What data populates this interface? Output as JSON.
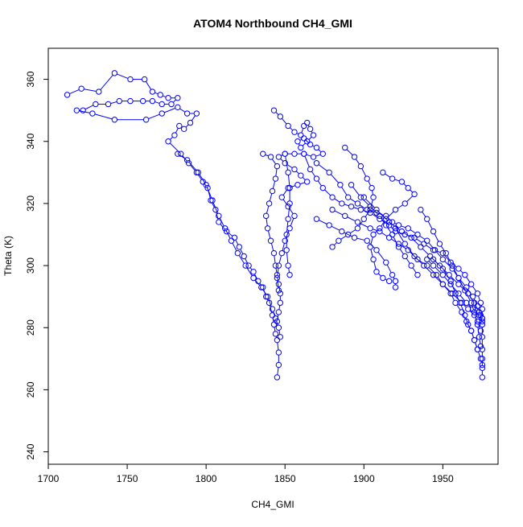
{
  "chart_data": {
    "type": "scatter",
    "title": "ATOM4 Northbound CH4_GMI",
    "xlabel": "CH4_GMI",
    "ylabel": "Theta (K)",
    "xlim": [
      1700,
      1985
    ],
    "ylim": [
      236,
      370
    ],
    "xticks": [
      1700,
      1750,
      1800,
      1850,
      1900,
      1950
    ],
    "yticks": [
      240,
      260,
      280,
      300,
      320,
      340,
      360
    ],
    "grid": false,
    "legend": "none",
    "markers": "open-circle",
    "connected": true,
    "color": "#0000FF",
    "series": [
      {
        "points": [
          [
            1712,
            355
          ],
          [
            1721,
            357
          ],
          [
            1732,
            356
          ],
          [
            1742,
            362
          ],
          [
            1752,
            360
          ],
          [
            1761,
            360
          ],
          [
            1766,
            356
          ],
          [
            1771,
            355
          ],
          [
            1776,
            354
          ],
          [
            1782,
            354
          ],
          [
            1778,
            352
          ],
          [
            1772,
            352
          ],
          [
            1766,
            353
          ],
          [
            1760,
            353
          ],
          [
            1752,
            353
          ],
          [
            1745,
            353
          ],
          [
            1738,
            352
          ],
          [
            1730,
            352
          ],
          [
            1722,
            350
          ],
          [
            1718,
            350
          ],
          [
            1728,
            349
          ],
          [
            1742,
            347
          ],
          [
            1762,
            347
          ],
          [
            1772,
            349
          ],
          [
            1782,
            351
          ],
          [
            1788,
            349
          ],
          [
            1794,
            349
          ],
          [
            1790,
            346
          ],
          [
            1786,
            344
          ],
          [
            1783,
            345
          ],
          [
            1780,
            342
          ],
          [
            1776,
            340
          ],
          [
            1784,
            336
          ],
          [
            1789,
            333
          ],
          [
            1794,
            330
          ],
          [
            1798,
            327
          ],
          [
            1801,
            325
          ],
          [
            1803,
            321
          ],
          [
            1806,
            318
          ],
          [
            1808,
            314
          ],
          [
            1813,
            311
          ],
          [
            1818,
            309
          ],
          [
            1821,
            306
          ],
          [
            1824,
            303
          ],
          [
            1827,
            300
          ],
          [
            1830,
            298
          ],
          [
            1833,
            295
          ],
          [
            1836,
            293
          ],
          [
            1838,
            290
          ],
          [
            1840,
            288
          ],
          [
            1842,
            284
          ],
          [
            1843,
            281
          ],
          [
            1844,
            278
          ],
          [
            1845,
            276
          ],
          [
            1846,
            272
          ],
          [
            1846,
            268
          ],
          [
            1845,
            264
          ]
        ]
      },
      {
        "points": [
          [
            1782,
            336
          ],
          [
            1788,
            334
          ],
          [
            1795,
            330
          ],
          [
            1800,
            326
          ],
          [
            1804,
            321
          ],
          [
            1808,
            316
          ],
          [
            1812,
            312
          ],
          [
            1816,
            308
          ],
          [
            1820,
            304
          ],
          [
            1825,
            300
          ],
          [
            1830,
            296
          ],
          [
            1835,
            293
          ],
          [
            1839,
            290
          ],
          [
            1842,
            286
          ],
          [
            1844,
            283
          ],
          [
            1846,
            280
          ],
          [
            1847,
            277
          ]
        ]
      },
      {
        "points": [
          [
            1843,
            350
          ],
          [
            1847,
            348
          ],
          [
            1852,
            345
          ],
          [
            1856,
            343
          ],
          [
            1860,
            342
          ],
          [
            1862,
            345
          ],
          [
            1864,
            346
          ],
          [
            1866,
            344
          ],
          [
            1868,
            342
          ],
          [
            1864,
            340
          ],
          [
            1860,
            338
          ],
          [
            1858,
            340
          ],
          [
            1862,
            341
          ],
          [
            1866,
            339
          ],
          [
            1870,
            338
          ],
          [
            1874,
            336
          ],
          [
            1868,
            335
          ],
          [
            1862,
            336
          ],
          [
            1856,
            336
          ],
          [
            1850,
            336
          ],
          [
            1846,
            335
          ],
          [
            1850,
            333
          ],
          [
            1856,
            331
          ],
          [
            1860,
            329
          ],
          [
            1864,
            327
          ],
          [
            1858,
            326
          ],
          [
            1852,
            325
          ],
          [
            1848,
            322
          ],
          [
            1852,
            319
          ],
          [
            1856,
            316
          ],
          [
            1853,
            312
          ],
          [
            1850,
            308
          ],
          [
            1848,
            304
          ],
          [
            1846,
            300
          ],
          [
            1845,
            296
          ],
          [
            1846,
            292
          ]
        ]
      },
      {
        "points": [
          [
            1836,
            336
          ],
          [
            1841,
            335
          ],
          [
            1845,
            332
          ],
          [
            1844,
            328
          ],
          [
            1842,
            324
          ],
          [
            1840,
            320
          ],
          [
            1838,
            316
          ],
          [
            1839,
            312
          ],
          [
            1841,
            308
          ],
          [
            1843,
            304
          ],
          [
            1844,
            300
          ],
          [
            1845,
            297
          ],
          [
            1846,
            294
          ],
          [
            1847,
            291
          ],
          [
            1847,
            288
          ],
          [
            1846,
            285
          ],
          [
            1845,
            282
          ]
        ]
      },
      {
        "points": [
          [
            1850,
            336
          ],
          [
            1852,
            330
          ],
          [
            1853,
            325
          ],
          [
            1853,
            320
          ],
          [
            1852,
            315
          ],
          [
            1851,
            310
          ],
          [
            1851,
            305
          ],
          [
            1852,
            300
          ],
          [
            1853,
            297
          ]
        ]
      },
      {
        "points": [
          [
            1862,
            336
          ],
          [
            1866,
            331
          ],
          [
            1870,
            328
          ],
          [
            1874,
            325
          ],
          [
            1880,
            322
          ],
          [
            1886,
            320
          ],
          [
            1892,
            319
          ],
          [
            1898,
            318
          ],
          [
            1904,
            317
          ],
          [
            1910,
            315
          ],
          [
            1916,
            313
          ],
          [
            1920,
            311
          ],
          [
            1926,
            310
          ],
          [
            1932,
            309
          ],
          [
            1938,
            307
          ],
          [
            1944,
            305
          ],
          [
            1950,
            304
          ],
          [
            1955,
            301
          ],
          [
            1960,
            299
          ],
          [
            1964,
            297
          ],
          [
            1968,
            294
          ],
          [
            1972,
            291
          ],
          [
            1974,
            288
          ],
          [
            1975,
            286
          ],
          [
            1975,
            283
          ]
        ]
      },
      {
        "points": [
          [
            1870,
            333
          ],
          [
            1878,
            330
          ],
          [
            1885,
            326
          ],
          [
            1890,
            322
          ],
          [
            1896,
            320
          ],
          [
            1902,
            318
          ],
          [
            1908,
            317
          ],
          [
            1914,
            316
          ],
          [
            1918,
            314
          ],
          [
            1922,
            313
          ],
          [
            1928,
            312
          ],
          [
            1934,
            310
          ],
          [
            1940,
            308
          ],
          [
            1945,
            305
          ],
          [
            1950,
            302
          ],
          [
            1956,
            299
          ],
          [
            1960,
            296
          ],
          [
            1965,
            293
          ],
          [
            1969,
            290
          ],
          [
            1972,
            287
          ],
          [
            1974,
            284
          ],
          [
            1975,
            281
          ],
          [
            1975,
            277
          ],
          [
            1975,
            273
          ],
          [
            1975,
            270
          ],
          [
            1975,
            267
          ],
          [
            1975,
            264
          ]
        ]
      },
      {
        "points": [
          [
            1880,
            318
          ],
          [
            1888,
            316
          ],
          [
            1896,
            314
          ],
          [
            1904,
            312
          ],
          [
            1910,
            311
          ],
          [
            1916,
            309
          ],
          [
            1922,
            307
          ],
          [
            1928,
            305
          ],
          [
            1934,
            302
          ],
          [
            1940,
            300
          ],
          [
            1946,
            297
          ],
          [
            1950,
            294
          ],
          [
            1955,
            291
          ],
          [
            1958,
            288
          ],
          [
            1962,
            285
          ],
          [
            1965,
            282
          ],
          [
            1968,
            279
          ],
          [
            1970,
            276
          ],
          [
            1972,
            273
          ],
          [
            1974,
            270
          ],
          [
            1975,
            268
          ]
        ]
      },
      {
        "points": [
          [
            1870,
            315
          ],
          [
            1878,
            313
          ],
          [
            1886,
            311
          ],
          [
            1894,
            309
          ],
          [
            1902,
            308
          ],
          [
            1908,
            305
          ],
          [
            1914,
            301
          ],
          [
            1918,
            297
          ],
          [
            1920,
            295
          ],
          [
            1920,
            293
          ]
        ]
      },
      {
        "points": [
          [
            1912,
            330
          ],
          [
            1918,
            328
          ],
          [
            1924,
            327
          ],
          [
            1928,
            325
          ],
          [
            1932,
            323
          ],
          [
            1926,
            320
          ],
          [
            1920,
            318
          ],
          [
            1914,
            315
          ],
          [
            1910,
            312
          ],
          [
            1906,
            310
          ],
          [
            1904,
            306
          ],
          [
            1906,
            302
          ],
          [
            1908,
            298
          ],
          [
            1912,
            296
          ],
          [
            1916,
            295
          ]
        ]
      },
      {
        "points": [
          [
            1888,
            338
          ],
          [
            1894,
            335
          ],
          [
            1898,
            332
          ],
          [
            1902,
            328
          ],
          [
            1905,
            325
          ],
          [
            1906,
            322
          ],
          [
            1904,
            318
          ],
          [
            1900,
            315
          ],
          [
            1896,
            312
          ],
          [
            1890,
            310
          ],
          [
            1884,
            308
          ],
          [
            1880,
            306
          ]
        ]
      },
      {
        "points": [
          [
            1920,
            312
          ],
          [
            1926,
            307
          ],
          [
            1932,
            303
          ],
          [
            1938,
            300
          ],
          [
            1944,
            297
          ],
          [
            1950,
            294
          ],
          [
            1956,
            291
          ],
          [
            1962,
            288
          ],
          [
            1966,
            286
          ],
          [
            1970,
            284
          ],
          [
            1972,
            282
          ],
          [
            1974,
            279
          ]
        ]
      },
      {
        "points": [
          [
            1936,
            318
          ],
          [
            1940,
            315
          ],
          [
            1944,
            311
          ],
          [
            1948,
            307
          ],
          [
            1952,
            304
          ],
          [
            1956,
            300
          ],
          [
            1960,
            296
          ],
          [
            1964,
            292
          ],
          [
            1968,
            288
          ],
          [
            1970,
            285
          ],
          [
            1972,
            281
          ],
          [
            1973,
            277
          ],
          [
            1974,
            274
          ]
        ]
      },
      {
        "points": [
          [
            1944,
            302
          ],
          [
            1950,
            299
          ],
          [
            1955,
            295
          ],
          [
            1958,
            291
          ],
          [
            1961,
            288
          ],
          [
            1964,
            284
          ],
          [
            1966,
            281
          ],
          [
            1968,
            279
          ],
          [
            1970,
            276
          ],
          [
            1972,
            273
          ]
        ]
      },
      {
        "points": [
          [
            1900,
            322
          ],
          [
            1908,
            318
          ],
          [
            1916,
            314
          ],
          [
            1924,
            311
          ],
          [
            1930,
            309
          ],
          [
            1936,
            306
          ],
          [
            1942,
            303
          ],
          [
            1948,
            300
          ],
          [
            1954,
            297
          ],
          [
            1960,
            294
          ],
          [
            1966,
            291
          ],
          [
            1970,
            288
          ],
          [
            1973,
            285
          ],
          [
            1975,
            282
          ]
        ]
      },
      {
        "points": [
          [
            1892,
            326
          ],
          [
            1898,
            322
          ],
          [
            1904,
            319
          ],
          [
            1910,
            316
          ],
          [
            1914,
            313
          ],
          [
            1918,
            310
          ],
          [
            1922,
            306
          ],
          [
            1926,
            303
          ],
          [
            1930,
            300
          ],
          [
            1934,
            297
          ]
        ]
      },
      {
        "points": [
          [
            1940,
            302
          ],
          [
            1944,
            300
          ],
          [
            1950,
            297
          ],
          [
            1955,
            294
          ],
          [
            1960,
            291
          ],
          [
            1965,
            288
          ],
          [
            1969,
            286
          ],
          [
            1973,
            284
          ],
          [
            1975,
            283
          ]
        ]
      }
    ]
  }
}
